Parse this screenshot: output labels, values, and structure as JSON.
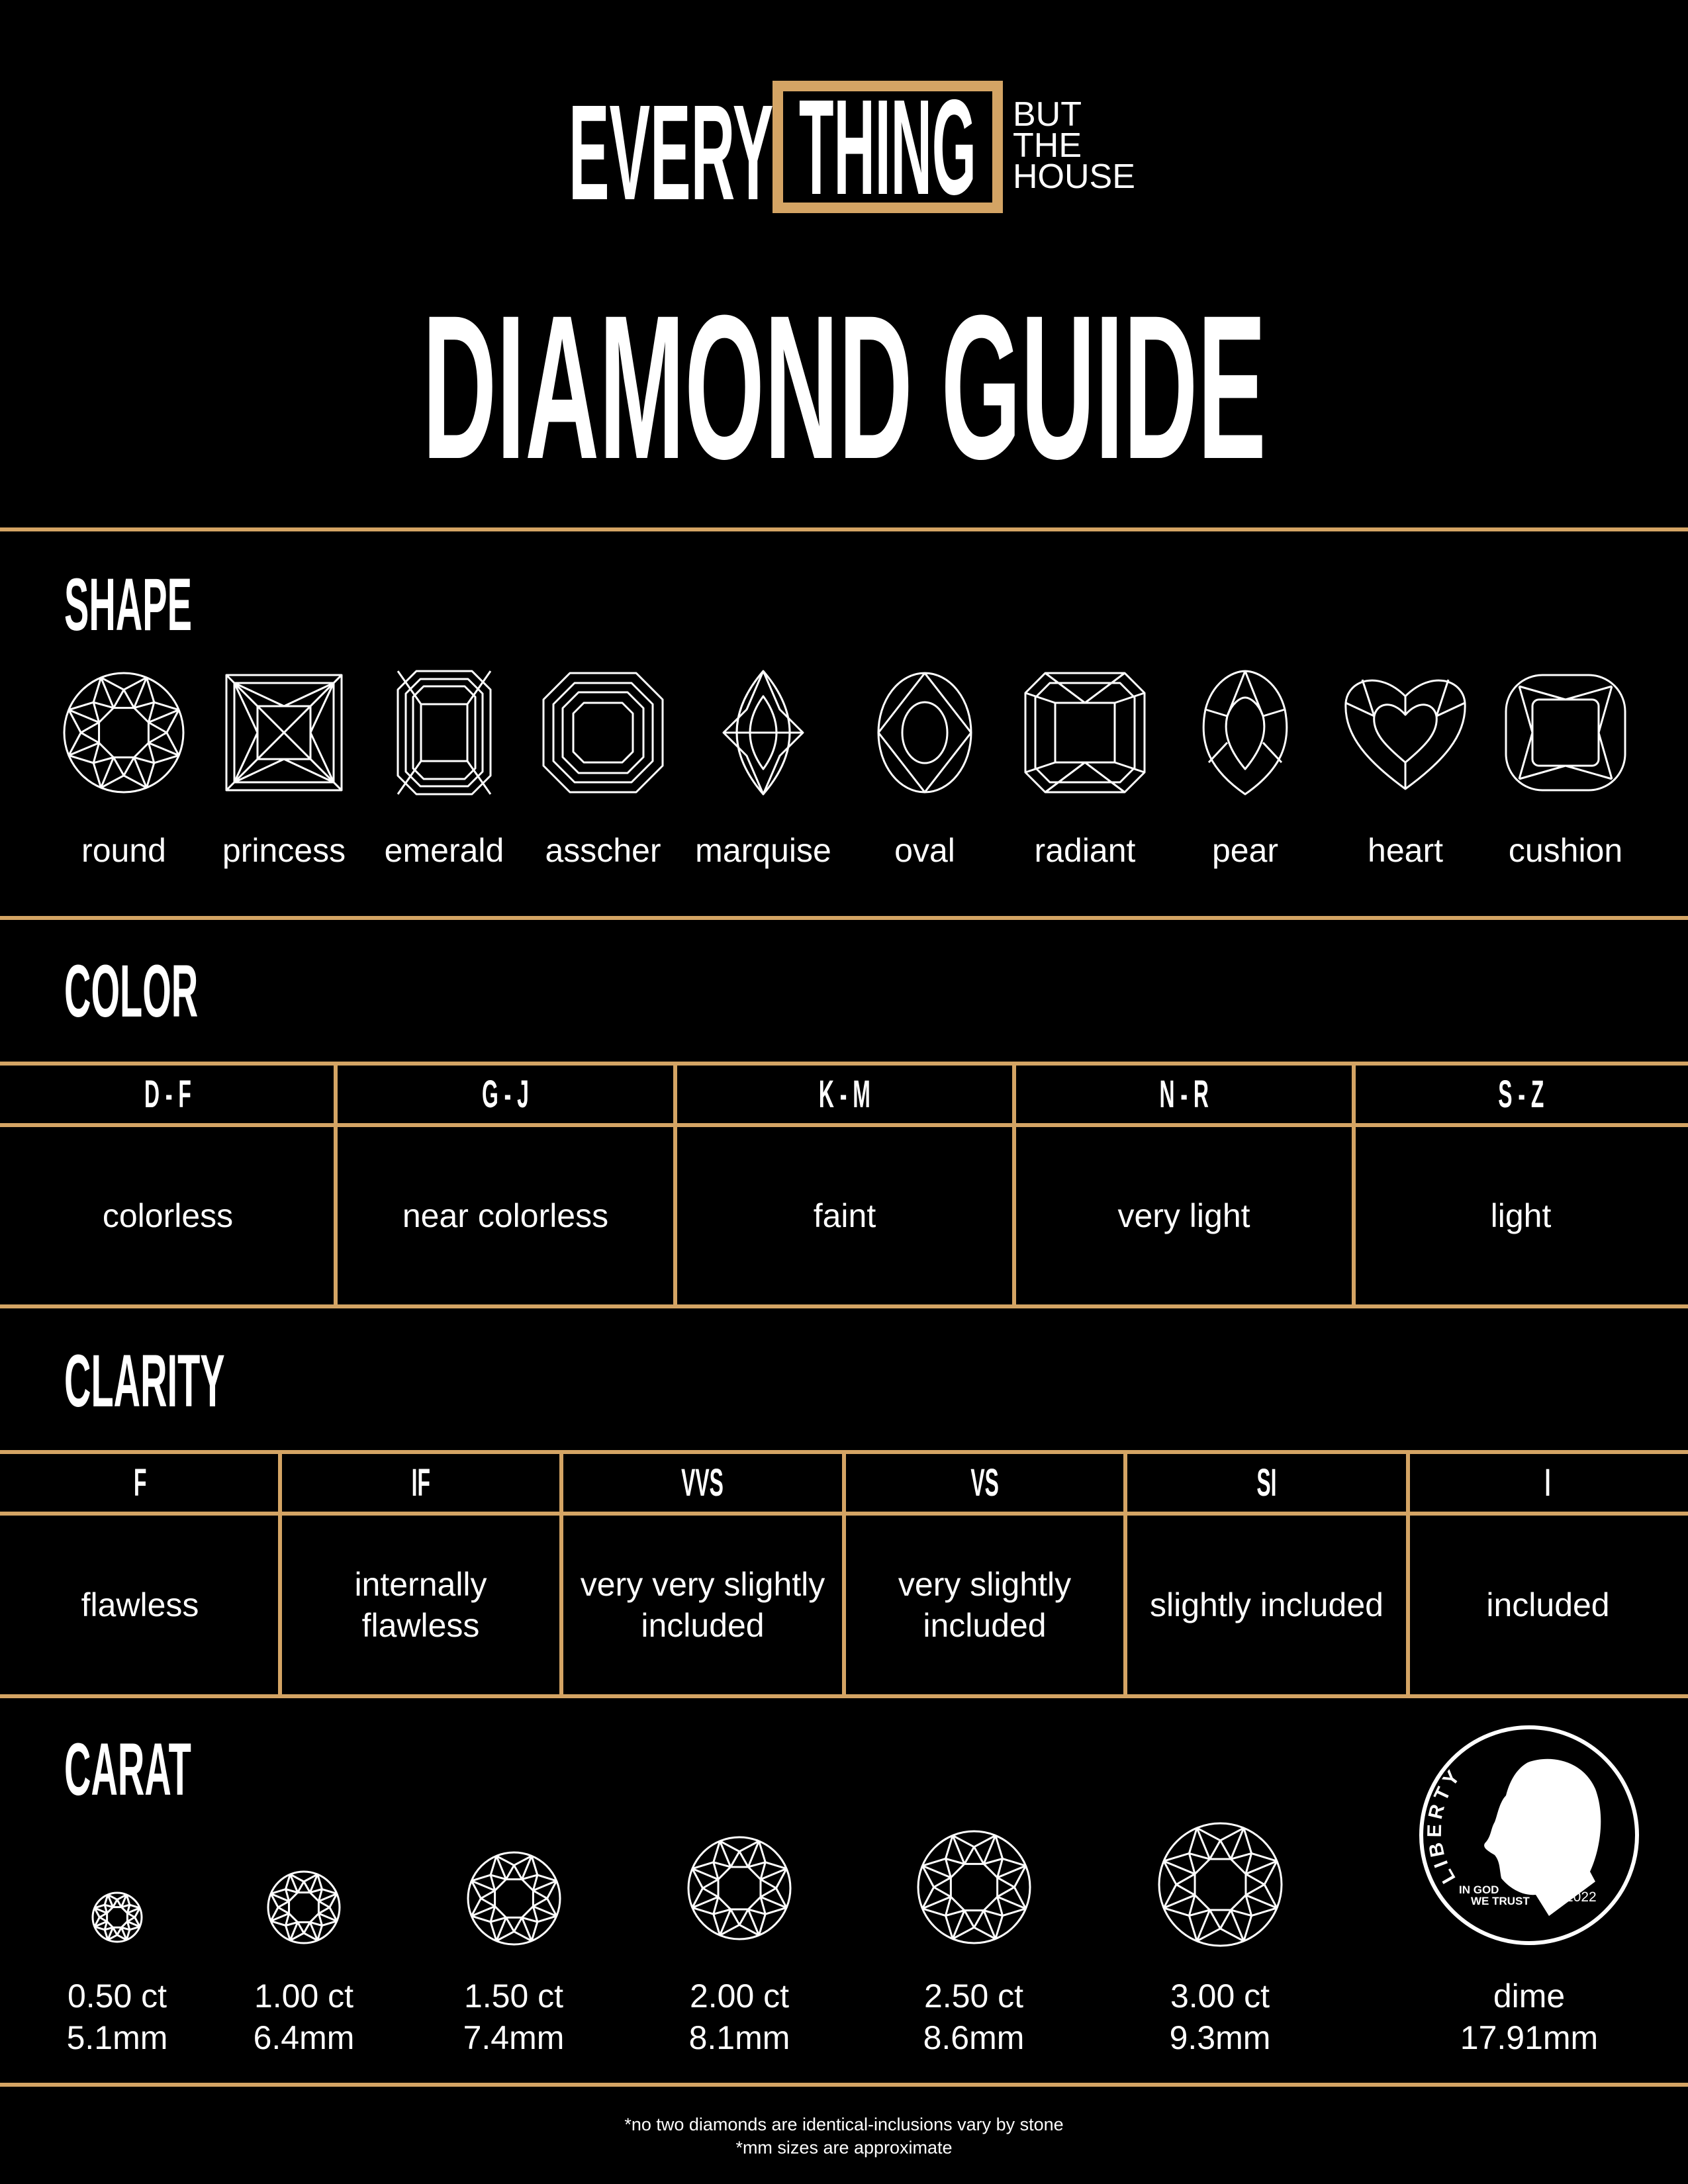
{
  "colors": {
    "gold": "#d4a464",
    "background": "#000000",
    "text": "#ffffff"
  },
  "logo": {
    "word1": "EVERY",
    "word2": "THING",
    "line1": "BUT",
    "line2": "THE",
    "line3": "HOUSE"
  },
  "title": "DIAMOND GUIDE",
  "shape": {
    "heading": "SHAPE",
    "items": [
      {
        "label": "round",
        "icon": "round-diamond-icon"
      },
      {
        "label": "princess",
        "icon": "princess-diamond-icon"
      },
      {
        "label": "emerald",
        "icon": "emerald-diamond-icon"
      },
      {
        "label": "asscher",
        "icon": "asscher-diamond-icon"
      },
      {
        "label": "marquise",
        "icon": "marquise-diamond-icon"
      },
      {
        "label": "oval",
        "icon": "oval-diamond-icon"
      },
      {
        "label": "radiant",
        "icon": "radiant-diamond-icon"
      },
      {
        "label": "pear",
        "icon": "pear-diamond-icon"
      },
      {
        "label": "heart",
        "icon": "heart-diamond-icon"
      },
      {
        "label": "cushion",
        "icon": "cushion-diamond-icon"
      }
    ]
  },
  "color": {
    "heading": "COLOR",
    "columns": [
      {
        "grade": "D - F",
        "desc": "colorless"
      },
      {
        "grade": "G - J",
        "desc": "near colorless"
      },
      {
        "grade": "K - M",
        "desc": "faint"
      },
      {
        "grade": "N - R",
        "desc": "very light"
      },
      {
        "grade": "S - Z",
        "desc": "light"
      }
    ]
  },
  "clarity": {
    "heading": "CLARITY",
    "columns": [
      {
        "grade": "F",
        "desc": "flawless"
      },
      {
        "grade": "IF",
        "desc": "internally\nflawless"
      },
      {
        "grade": "VVS",
        "desc": "very very slightly\nincluded"
      },
      {
        "grade": "VS",
        "desc": "very slightly\nincluded"
      },
      {
        "grade": "SI",
        "desc": "slightly included"
      },
      {
        "grade": "I",
        "desc": "included"
      }
    ]
  },
  "carat": {
    "heading": "CARAT",
    "items": [
      {
        "carat": "0.50 ct",
        "mm": "5.1mm"
      },
      {
        "carat": "1.00 ct",
        "mm": "6.4mm"
      },
      {
        "carat": "1.50 ct",
        "mm": "7.4mm"
      },
      {
        "carat": "2.00 ct",
        "mm": "8.1mm"
      },
      {
        "carat": "2.50 ct",
        "mm": "8.6mm"
      },
      {
        "carat": "3.00 ct",
        "mm": "9.3mm"
      }
    ],
    "dime": {
      "label": "dime",
      "mm": "17.91mm",
      "coin_text": {
        "liberty": "LIBERTY",
        "motto1": "IN GOD",
        "motto2": "WE TRUST",
        "year": "2022"
      }
    }
  },
  "footer": {
    "note1": "*no two diamonds are identical-inclusions vary by stone",
    "note2": "*mm sizes are approximate"
  }
}
